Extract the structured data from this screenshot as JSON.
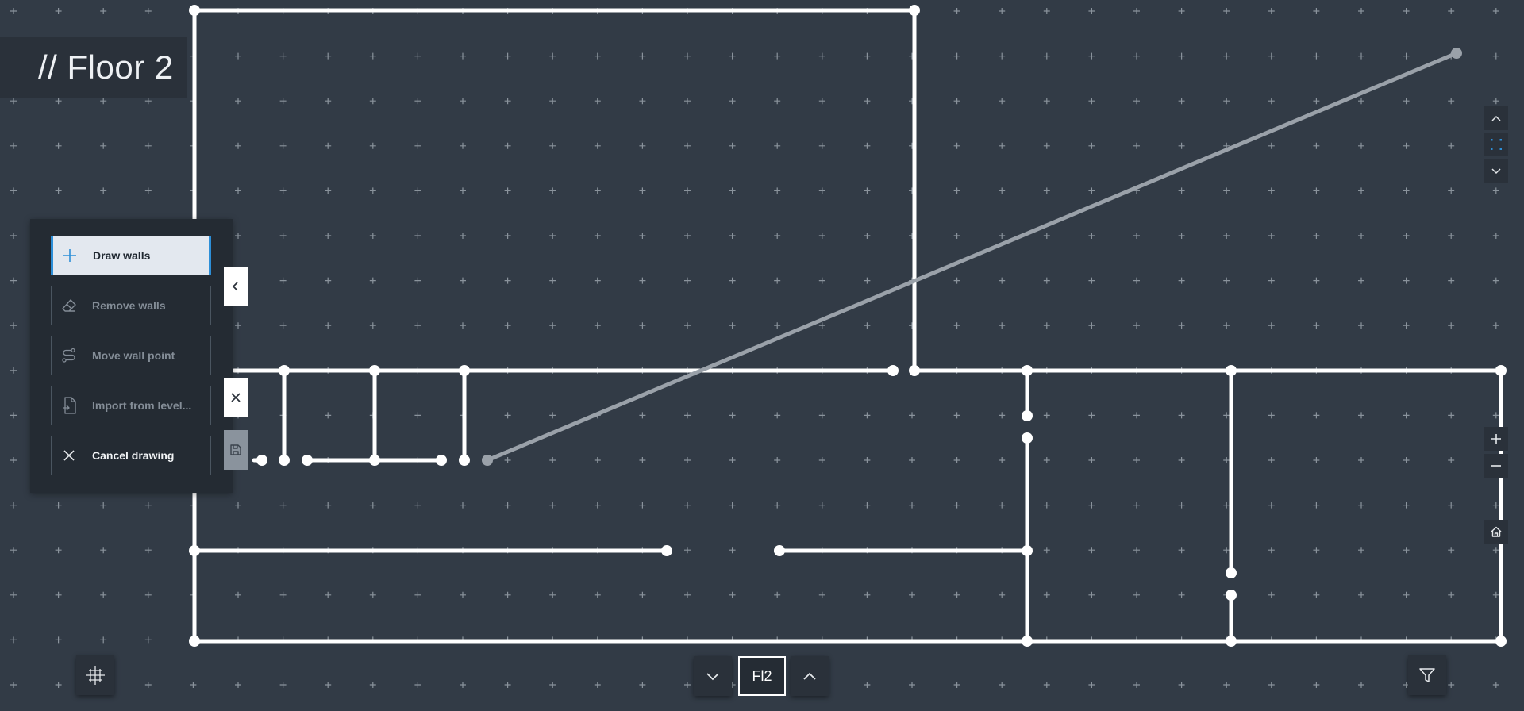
{
  "header": {
    "floor_title": "// Floor 2"
  },
  "tools": {
    "items": [
      {
        "label": "Draw walls",
        "icon": "plus-icon",
        "state": "active"
      },
      {
        "label": "Remove walls",
        "icon": "eraser-icon",
        "state": "disabled"
      },
      {
        "label": "Move wall point",
        "icon": "path-icon",
        "state": "disabled"
      },
      {
        "label": "Import from level...",
        "icon": "file-import-icon",
        "state": "disabled"
      },
      {
        "label": "Cancel drawing",
        "icon": "close-icon",
        "state": "enabled"
      }
    ]
  },
  "level_nav": {
    "current": "Fl2"
  },
  "icons": {
    "collapse": "chevron-left-icon",
    "close": "close-icon",
    "save": "save-icon",
    "grid_toggle": "grid-toggle-icon",
    "level_down": "chevron-down-icon",
    "level_up": "chevron-up-icon",
    "filter": "filter-icon",
    "pan_up": "chevron-up-icon",
    "snap": "dots-grid-icon",
    "pan_down": "chevron-down-icon",
    "zoom_in": "plus-icon",
    "zoom_out": "minus-icon",
    "home": "home-icon"
  },
  "colors": {
    "background": "#323b46",
    "wall": "#ffffff",
    "draft_wall": "#9aa1a9",
    "accent": "#2d8fd8",
    "grid_mark": "#8a939c"
  }
}
